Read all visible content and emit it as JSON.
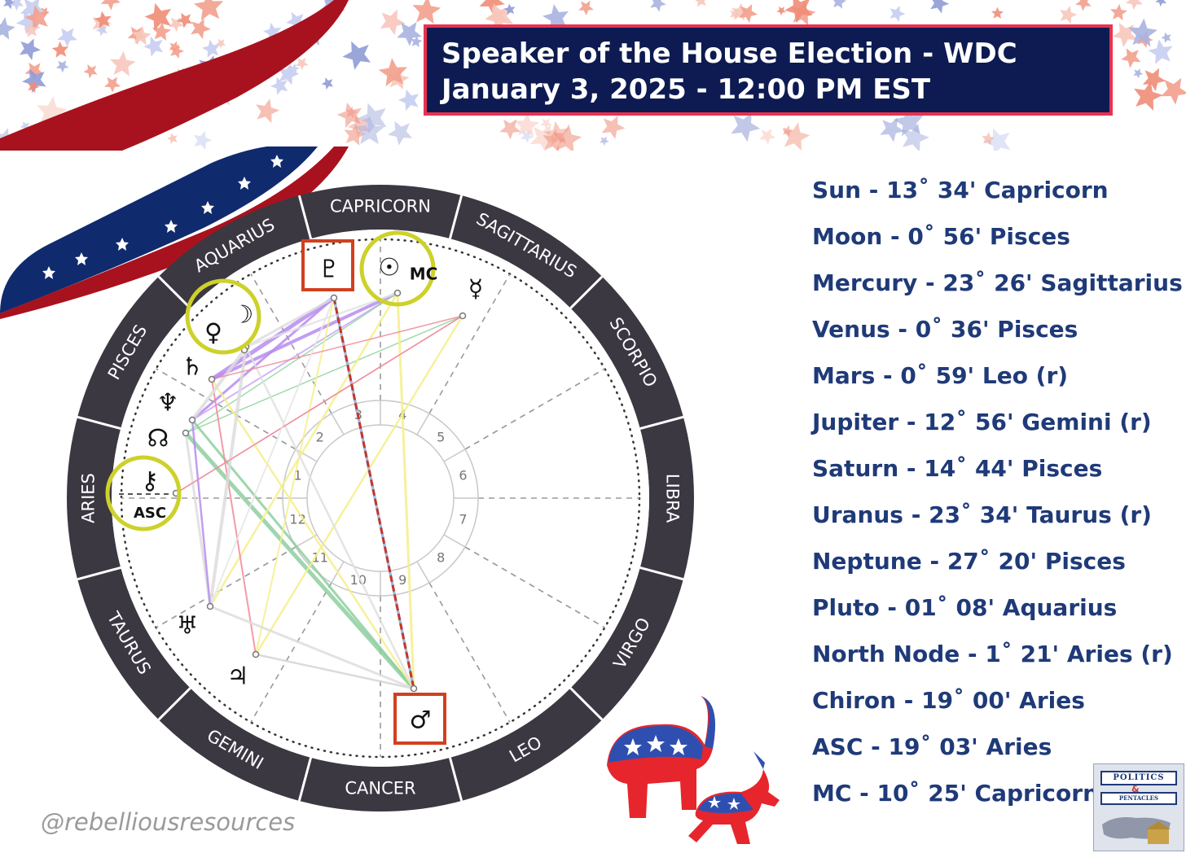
{
  "title": {
    "line1": "Speaker of the House Election - WDC",
    "line2": "January 3, 2025 - 12:00 PM EST"
  },
  "positions": [
    "Sun - 13˚ 34' Capricorn",
    "Moon - 0˚ 56' Pisces",
    "Mercury - 23˚ 26' Sagittarius",
    "Venus - 0˚ 36' Pisces",
    "Mars - 0˚ 59' Leo (r)",
    "Jupiter - 12˚ 56' Gemini (r)",
    "Saturn - 14˚ 44' Pisces",
    "Uranus - 23˚ 34' Taurus (r)",
    "Neptune - 27˚ 20' Pisces",
    "Pluto - 01˚ 08' Aquarius",
    "North Node - 1˚ 21' Aries (r)",
    "Chiron - 19˚ 00' Aries",
    "ASC - 19˚ 03' Aries",
    "MC - 10˚ 25' Capricorn"
  ],
  "zodiac_signs": [
    "CAPRICORN",
    "SAGITTARIUS",
    "SCORPIO",
    "LIBRA",
    "VIRGO",
    "LEO",
    "CANCER",
    "GEMINI",
    "TAURUS",
    "ARIES",
    "PISCES",
    "AQUARIUS"
  ],
  "house_numbers": [
    "1",
    "2",
    "3",
    "4",
    "5",
    "6",
    "7",
    "8",
    "9",
    "10",
    "11",
    "12"
  ],
  "chart_labels": {
    "asc": "ASC",
    "mc": "MC"
  },
  "planet_glyphs": {
    "pluto": "♇",
    "sun": "☉",
    "mercury": "☿",
    "moon": "☽",
    "venus": "♀",
    "saturn": "♄",
    "neptune": "♆",
    "node": "☊",
    "chiron": "⚷",
    "uranus": "♅",
    "jupiter": "♃",
    "mars": "♂"
  },
  "handle": "@rebelliousresources",
  "logo": {
    "line1": "POLITICS",
    "amp": "&",
    "line2": "PENTACLES"
  },
  "colors": {
    "navy": "#0d1b52",
    "accent_red": "#e8324f",
    "text_blue": "#1f3a78",
    "wheel_dark": "#3b3842",
    "highlight_yellow": "#cdd12a",
    "box_red": "#d2401f"
  }
}
